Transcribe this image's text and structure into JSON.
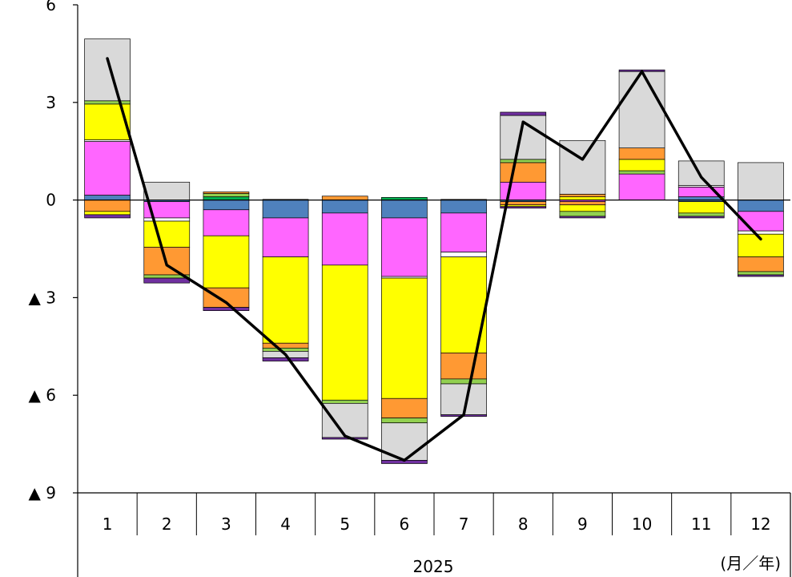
{
  "chart_data": {
    "type": "bar",
    "stacked": true,
    "combined_with_line": true,
    "categories": [
      "1",
      "2",
      "3",
      "4",
      "5",
      "6",
      "7",
      "8",
      "9",
      "10",
      "11",
      "12"
    ],
    "y_ticks": [
      6,
      3,
      0,
      -3,
      -6,
      -9
    ],
    "y_tick_labels": [
      "6",
      "3",
      "0",
      "▲ 3",
      "▲ 6",
      "▲ 9"
    ],
    "ylim": [
      -9,
      6
    ],
    "year_label": "2025",
    "unit_label": "(月／年)",
    "grid": false,
    "legend": "none",
    "segment_colors": {
      "blue": "#4f81bd",
      "magenta": "#ff66ff",
      "white": "#ffffff",
      "yellow": "#ffff00",
      "orange": "#ff9933",
      "green": "#92d050",
      "gray": "#d9d9d9",
      "purple": "#7030a0",
      "darkgreen": "#00b050"
    },
    "bars": [
      {
        "pos": [
          [
            "blue",
            0.15
          ],
          [
            "magenta",
            1.65
          ],
          [
            "white",
            0.05
          ],
          [
            "yellow",
            1.1
          ],
          [
            "green",
            0.1
          ],
          [
            "gray",
            1.9
          ]
        ],
        "neg": [
          [
            "orange",
            -0.35
          ],
          [
            "yellow",
            -0.1
          ],
          [
            "purple",
            -0.1
          ]
        ]
      },
      {
        "pos": [
          [
            "gray",
            0.55
          ]
        ],
        "neg": [
          [
            "blue",
            -0.05
          ],
          [
            "magenta",
            -0.5
          ],
          [
            "white",
            -0.1
          ],
          [
            "yellow",
            -0.8
          ],
          [
            "orange",
            -0.85
          ],
          [
            "green",
            -0.1
          ],
          [
            "purple",
            -0.15
          ]
        ]
      },
      {
        "pos": [
          [
            "darkgreen",
            0.1
          ],
          [
            "green",
            0.1
          ],
          [
            "orange",
            0.05
          ]
        ],
        "neg": [
          [
            "blue",
            -0.3
          ],
          [
            "magenta",
            -0.8
          ],
          [
            "yellow",
            -1.6
          ],
          [
            "orange",
            -0.6
          ],
          [
            "purple",
            -0.1
          ]
        ]
      },
      {
        "pos": [
          [
            "blue",
            0.02
          ]
        ],
        "neg": [
          [
            "blue",
            -0.55
          ],
          [
            "magenta",
            -1.2
          ],
          [
            "yellow",
            -2.65
          ],
          [
            "orange",
            -0.15
          ],
          [
            "green",
            -0.1
          ],
          [
            "gray",
            -0.2
          ],
          [
            "purple",
            -0.1
          ]
        ]
      },
      {
        "pos": [
          [
            "orange",
            0.12
          ]
        ],
        "neg": [
          [
            "blue",
            -0.4
          ],
          [
            "magenta",
            -1.6
          ],
          [
            "yellow",
            -4.15
          ],
          [
            "green",
            -0.1
          ],
          [
            "gray",
            -1.05
          ],
          [
            "purple",
            -0.05
          ]
        ]
      },
      {
        "pos": [
          [
            "darkgreen",
            0.08
          ]
        ],
        "neg": [
          [
            "blue",
            -0.55
          ],
          [
            "magenta",
            -1.8
          ],
          [
            "white",
            -0.05
          ],
          [
            "yellow",
            -3.7
          ],
          [
            "orange",
            -0.6
          ],
          [
            "green",
            -0.15
          ],
          [
            "gray",
            -1.15
          ],
          [
            "purple",
            -0.1
          ]
        ]
      },
      {
        "pos": [
          [
            "blue",
            0.02
          ]
        ],
        "neg": [
          [
            "blue",
            -0.4
          ],
          [
            "magenta",
            -1.2
          ],
          [
            "white",
            -0.15
          ],
          [
            "yellow",
            -2.95
          ],
          [
            "orange",
            -0.8
          ],
          [
            "green",
            -0.15
          ],
          [
            "gray",
            -0.95
          ],
          [
            "purple",
            -0.05
          ]
        ]
      },
      {
        "pos": [
          [
            "magenta",
            0.55
          ],
          [
            "orange",
            0.6
          ],
          [
            "green",
            0.1
          ],
          [
            "gray",
            1.35
          ],
          [
            "purple",
            0.1
          ]
        ],
        "neg": [
          [
            "blue",
            -0.05
          ],
          [
            "orange",
            -0.1
          ],
          [
            "yellow",
            -0.05
          ],
          [
            "purple",
            -0.05
          ]
        ]
      },
      {
        "pos": [
          [
            "yellow",
            0.1
          ],
          [
            "orange",
            0.08
          ],
          [
            "gray",
            1.65
          ]
        ],
        "neg": [
          [
            "magenta",
            -0.05
          ],
          [
            "orange",
            -0.1
          ],
          [
            "yellow",
            -0.2
          ],
          [
            "green",
            -0.15
          ],
          [
            "purple",
            -0.05
          ]
        ]
      },
      {
        "pos": [
          [
            "magenta",
            0.8
          ],
          [
            "green",
            0.1
          ],
          [
            "yellow",
            0.35
          ],
          [
            "orange",
            0.35
          ],
          [
            "gray",
            2.35
          ],
          [
            "purple",
            0.05
          ]
        ],
        "neg": []
      },
      {
        "pos": [
          [
            "blue",
            0.1
          ],
          [
            "magenta",
            0.3
          ],
          [
            "white",
            0.05
          ],
          [
            "gray",
            0.75
          ]
        ],
        "neg": [
          [
            "blue",
            -0.05
          ],
          [
            "yellow",
            -0.35
          ],
          [
            "green",
            -0.1
          ],
          [
            "purple",
            -0.05
          ]
        ]
      },
      {
        "pos": [
          [
            "gray",
            1.15
          ]
        ],
        "neg": [
          [
            "blue",
            -0.35
          ],
          [
            "magenta",
            -0.6
          ],
          [
            "white",
            -0.1
          ],
          [
            "yellow",
            -0.7
          ],
          [
            "orange",
            -0.45
          ],
          [
            "green",
            -0.1
          ],
          [
            "purple",
            -0.05
          ]
        ]
      }
    ],
    "line": [
      4.35,
      -2.0,
      -3.15,
      -4.75,
      -7.25,
      -8.0,
      -6.6,
      2.4,
      1.25,
      3.95,
      0.7,
      -1.2
    ]
  }
}
